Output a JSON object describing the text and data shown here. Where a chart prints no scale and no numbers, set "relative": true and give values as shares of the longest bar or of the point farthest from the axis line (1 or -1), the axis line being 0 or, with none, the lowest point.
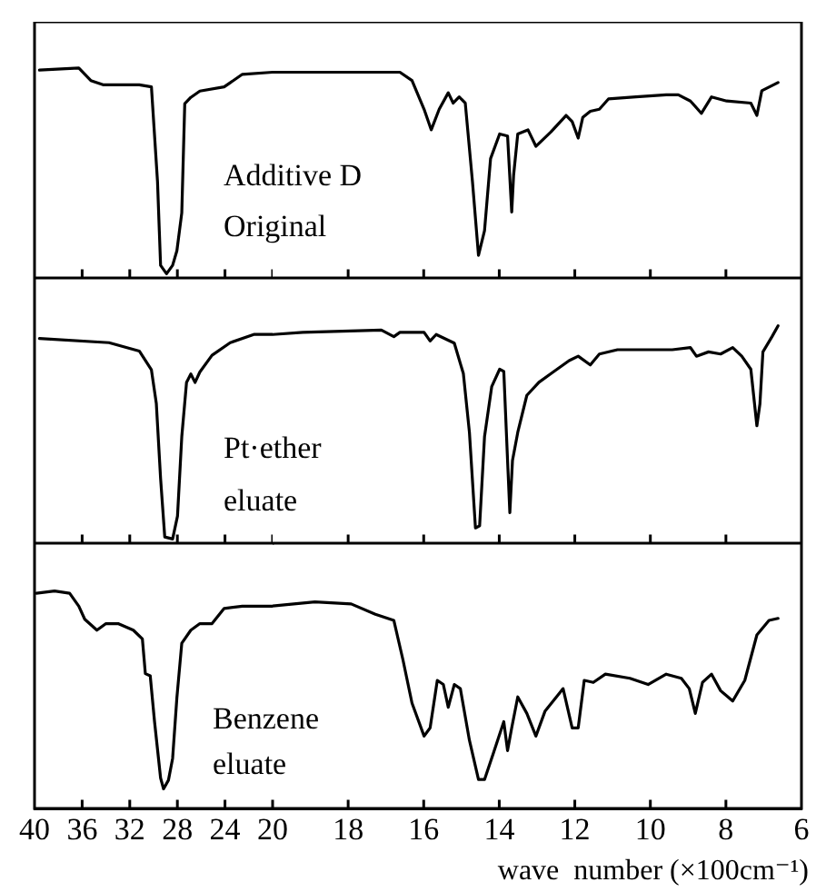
{
  "chart_data": [
    {
      "type": "line",
      "relative": true,
      "tick_labels": false,
      "annotations": [
        "Additive D",
        "Original"
      ],
      "xlim": [
        40,
        20
      ],
      "xticks": [
        40,
        36,
        32,
        28,
        24,
        20
      ],
      "series": [
        {
          "color": "#000000",
          "x": [
            39.59,
            36.28,
            35.27,
            34.25,
            31.2,
            30.18,
            29.67,
            29.41,
            28.91,
            28.4,
            28.04,
            27.63,
            27.38,
            26.87,
            26.11,
            24.07,
            22.54,
            20.0
          ],
          "values": [
            0.99,
            1.0,
            0.94,
            0.92,
            0.92,
            0.91,
            0.46,
            0.06,
            0.02,
            0.06,
            0.13,
            0.31,
            0.83,
            0.86,
            0.89,
            0.91,
            0.97,
            0.98
          ]
        }
      ]
    },
    {
      "type": "line",
      "relative": true,
      "tick_labels": false,
      "xlim": [
        20,
        6
      ],
      "xticks": [
        18,
        16,
        14,
        12,
        10,
        8,
        6
      ],
      "series": [
        {
          "color": "#000000",
          "x": [
            20.0,
            18.4,
            16.63,
            16.31,
            15.99,
            15.8,
            15.59,
            15.35,
            15.22,
            15.06,
            14.9,
            14.71,
            14.55,
            14.39,
            14.23,
            13.99,
            13.78,
            13.67,
            13.62,
            13.51,
            13.24,
            13.03,
            12.63,
            12.23,
            12.07,
            11.91,
            11.79,
            11.59,
            11.35,
            11.11,
            10.38,
            9.58,
            9.26,
            8.94,
            8.65,
            8.38,
            7.98,
            7.34,
            7.18,
            7.05,
            6.62
          ],
          "values": [
            1.0,
            1.0,
            1.0,
            0.96,
            0.82,
            0.72,
            0.82,
            0.9,
            0.85,
            0.88,
            0.85,
            0.47,
            0.11,
            0.23,
            0.58,
            0.7,
            0.69,
            0.32,
            0.5,
            0.7,
            0.72,
            0.64,
            0.71,
            0.79,
            0.76,
            0.68,
            0.78,
            0.81,
            0.82,
            0.87,
            0.88,
            0.89,
            0.89,
            0.86,
            0.8,
            0.88,
            0.86,
            0.85,
            0.79,
            0.91,
            0.95
          ]
        }
      ]
    },
    {
      "type": "line",
      "relative": true,
      "tick_labels": false,
      "annotations": [
        "Pt·ether",
        "eluate"
      ],
      "xlim": [
        40,
        20
      ],
      "xticks": [
        40,
        36,
        32,
        28,
        24,
        20
      ],
      "series": [
        {
          "color": "#000000",
          "x": [
            39.59,
            33.74,
            31.2,
            30.18,
            29.77,
            29.41,
            29.06,
            28.4,
            27.99,
            27.63,
            27.23,
            26.87,
            26.51,
            26.11,
            25.09,
            23.56,
            21.53,
            20.0
          ],
          "values": [
            0.98,
            0.96,
            0.92,
            0.83,
            0.67,
            0.31,
            0.03,
            0.02,
            0.13,
            0.51,
            0.77,
            0.81,
            0.77,
            0.82,
            0.9,
            0.96,
            1.0,
            1.0
          ]
        }
      ]
    },
    {
      "type": "line",
      "relative": true,
      "tick_labels": false,
      "xlim": [
        20,
        6
      ],
      "xticks": [
        18,
        16,
        14,
        12,
        10,
        8,
        6
      ],
      "series": [
        {
          "color": "#000000",
          "x": [
            20.0,
            19.2,
            17.12,
            16.79,
            16.63,
            15.99,
            15.83,
            15.67,
            15.19,
            14.95,
            14.79,
            14.63,
            14.52,
            14.39,
            14.2,
            13.99,
            13.88,
            13.78,
            13.72,
            13.65,
            13.51,
            13.27,
            12.95,
            12.63,
            12.15,
            11.91,
            11.59,
            11.35,
            10.87,
            10.22,
            9.42,
            8.94,
            8.78,
            8.46,
            8.14,
            7.82,
            7.58,
            7.34,
            7.18,
            7.1,
            7.02,
            6.78,
            6.62
          ],
          "values": [
            0.96,
            0.97,
            0.98,
            0.95,
            0.97,
            0.97,
            0.93,
            0.96,
            0.92,
            0.78,
            0.51,
            0.07,
            0.08,
            0.49,
            0.72,
            0.8,
            0.79,
            0.38,
            0.14,
            0.38,
            0.51,
            0.68,
            0.74,
            0.78,
            0.84,
            0.86,
            0.82,
            0.87,
            0.89,
            0.89,
            0.89,
            0.9,
            0.86,
            0.88,
            0.87,
            0.9,
            0.86,
            0.8,
            0.54,
            0.64,
            0.88,
            0.95,
            1.0
          ]
        }
      ]
    },
    {
      "type": "line",
      "relative": true,
      "tick_labels": "x",
      "annotations": [
        "Benzene",
        "eluate"
      ],
      "xlim": [
        40,
        20
      ],
      "xticks": [
        40,
        36,
        32,
        28,
        24,
        20
      ],
      "series": [
        {
          "color": "#000000",
          "x": [
            39.85,
            38.32,
            37.05,
            36.28,
            35.78,
            34.76,
            34.0,
            32.98,
            31.7,
            30.94,
            30.69,
            30.28,
            29.92,
            29.41,
            29.16,
            28.75,
            28.4,
            28.04,
            27.63,
            26.87,
            26.11,
            25.09,
            24.07,
            22.54,
            20.0
          ],
          "values": [
            0.99,
            1.0,
            0.99,
            0.93,
            0.87,
            0.82,
            0.85,
            0.85,
            0.82,
            0.78,
            0.62,
            0.61,
            0.4,
            0.14,
            0.09,
            0.13,
            0.23,
            0.51,
            0.76,
            0.82,
            0.85,
            0.85,
            0.92,
            0.93,
            0.93
          ]
        }
      ]
    },
    {
      "type": "line",
      "relative": true,
      "tick_labels": "x",
      "xlabel": "wave  number (×100cm⁻¹)",
      "xlim": [
        20,
        6
      ],
      "xticks": [
        18,
        16,
        14,
        12,
        10,
        8,
        6
      ],
      "series": [
        {
          "color": "#000000",
          "x": [
            20.0,
            18.88,
            17.92,
            17.28,
            16.79,
            16.55,
            16.31,
            15.99,
            15.83,
            15.64,
            15.48,
            15.35,
            15.19,
            15.03,
            14.79,
            14.55,
            14.39,
            14.15,
            13.88,
            13.78,
            13.67,
            13.51,
            13.27,
            13.03,
            12.79,
            12.31,
            12.07,
            11.91,
            11.75,
            11.51,
            11.19,
            10.54,
            10.06,
            9.58,
            9.18,
            8.97,
            8.81,
            8.62,
            8.38,
            8.14,
            7.82,
            7.5,
            7.18,
            6.86,
            6.62
          ],
          "values": [
            0.98,
            1.0,
            0.99,
            0.94,
            0.91,
            0.72,
            0.51,
            0.35,
            0.39,
            0.62,
            0.6,
            0.49,
            0.6,
            0.58,
            0.33,
            0.14,
            0.14,
            0.27,
            0.42,
            0.28,
            0.39,
            0.54,
            0.46,
            0.35,
            0.47,
            0.58,
            0.39,
            0.39,
            0.62,
            0.61,
            0.65,
            0.63,
            0.6,
            0.65,
            0.63,
            0.58,
            0.46,
            0.61,
            0.65,
            0.57,
            0.52,
            0.62,
            0.84,
            0.91,
            0.92
          ]
        }
      ]
    }
  ]
}
